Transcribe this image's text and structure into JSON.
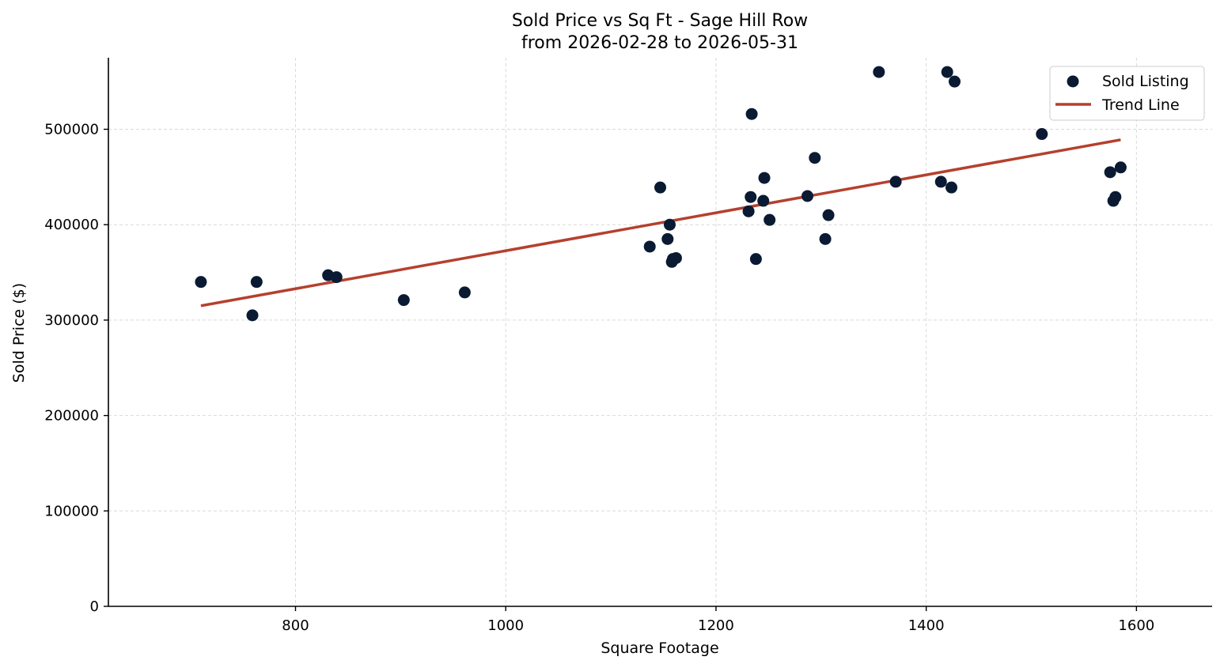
{
  "chart_data": {
    "type": "scatter",
    "title": "Sold Price vs Sq Ft - Sage Hill Row",
    "subtitle": "from 2026-02-28 to 2026-05-31",
    "xlabel": "Square Footage",
    "ylabel": "Sold Price ($)",
    "xlim": [
      622,
      1672
    ],
    "ylim": [
      0,
      575000
    ],
    "xticks": [
      800,
      1000,
      1200,
      1400,
      1600
    ],
    "yticks": [
      0,
      100000,
      200000,
      300000,
      400000,
      500000
    ],
    "grid": true,
    "legend_position": "top-right",
    "colors": {
      "points": "#0b1a33",
      "trend": "#b5402e"
    },
    "series": [
      {
        "name": "Sold Listing",
        "kind": "scatter",
        "x": [
          710,
          759,
          763,
          831,
          839,
          903,
          961,
          1137,
          1147,
          1154,
          1156,
          1158,
          1159,
          1162,
          1231,
          1233,
          1234,
          1238,
          1245,
          1246,
          1251,
          1287,
          1294,
          1304,
          1307,
          1355,
          1371,
          1414,
          1420,
          1424,
          1427,
          1510,
          1575,
          1578,
          1580,
          1585
        ],
        "y": [
          340000,
          305000,
          340000,
          347000,
          345000,
          321000,
          329000,
          377000,
          439000,
          385000,
          400000,
          361000,
          364000,
          365000,
          414000,
          429000,
          516000,
          364000,
          425000,
          449000,
          405000,
          430000,
          470000,
          385000,
          410000,
          560000,
          445000,
          445000,
          560000,
          439000,
          550000,
          495000,
          455000,
          425000,
          429000,
          460000
        ]
      },
      {
        "name": "Trend Line",
        "kind": "line",
        "x": [
          710,
          1585
        ],
        "y": [
          315000,
          489000
        ]
      }
    ]
  }
}
